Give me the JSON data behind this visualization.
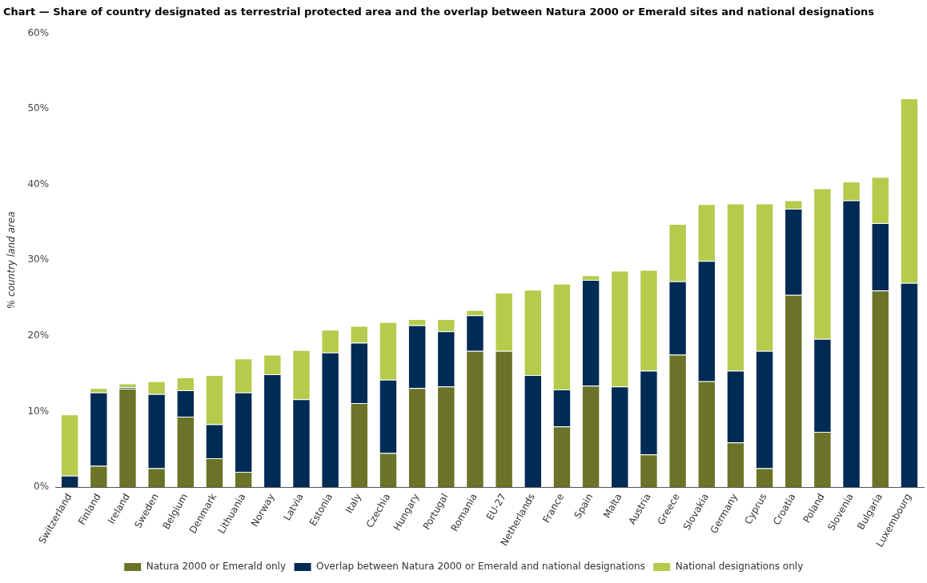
{
  "chart_data": {
    "type": "bar",
    "title": "Chart — Share of country designated as terrestrial protected area and the overlap between Natura 2000 or Emerald sites and national designations",
    "ylabel": "% country land area",
    "categories": [
      "Switzerland",
      "Finland",
      "Ireland",
      "Sweden",
      "Belgium",
      "Denmark",
      "Lithuania",
      "Norway",
      "Latvia",
      "Estonia",
      "Italy",
      "Czechia",
      "Hungary",
      "Portugal",
      "Romania",
      "EU-27",
      "Netherlands",
      "France",
      "Spain",
      "Malta",
      "Austria",
      "Greece",
      "Slovakia",
      "Germany",
      "Cyprus",
      "Croatia",
      "Poland",
      "Slovenia",
      "Bulgaria",
      "Luxembourg"
    ],
    "stacked": true,
    "series": [
      {
        "name": "Natura 2000 or Emerald only",
        "color": "#6b7328",
        "values": [
          0,
          2.8,
          13.0,
          2.5,
          9.3,
          3.8,
          2.0,
          0,
          0,
          0,
          11.1,
          4.5,
          13.1,
          13.3,
          18.0,
          18.0,
          0,
          8.0,
          13.4,
          0,
          4.3,
          17.5,
          14.0,
          5.9,
          2.5,
          25.4,
          7.3,
          0,
          26.0,
          0
        ]
      },
      {
        "name": "Overlap between Natura 2000 or Emerald and national designations",
        "color": "#002b55",
        "values": [
          1.5,
          9.7,
          0.2,
          9.8,
          3.5,
          4.5,
          10.5,
          14.9,
          11.6,
          17.8,
          8.0,
          9.7,
          8.3,
          7.3,
          4.7,
          0,
          14.8,
          4.9,
          14.0,
          13.3,
          11.1,
          9.7,
          15.9,
          9.5,
          15.5,
          11.4,
          12.3,
          37.9,
          8.9,
          27.0
        ]
      },
      {
        "name": "National designations only",
        "color": "#b5cb4c",
        "values": [
          8.1,
          0.6,
          0.5,
          1.7,
          1.7,
          6.5,
          4.5,
          2.6,
          6.5,
          3.0,
          2.2,
          7.6,
          0.8,
          1.6,
          0.7,
          7.7,
          11.3,
          14.0,
          0.6,
          15.3,
          13.3,
          7.6,
          7.5,
          22.1,
          19.5,
          1.1,
          19.9,
          2.5,
          6.1,
          24.4
        ]
      }
    ],
    "ylim": [
      0,
      60
    ],
    "yticks": [
      {
        "value": 0,
        "label": "0%"
      },
      {
        "value": 10,
        "label": "10%"
      },
      {
        "value": 20,
        "label": "20%"
      },
      {
        "value": 30,
        "label": "30%"
      },
      {
        "value": 40,
        "label": "40%"
      },
      {
        "value": 50,
        "label": "50%"
      },
      {
        "value": 60,
        "label": "60%"
      }
    ],
    "grid": false,
    "legend": "bottom"
  }
}
